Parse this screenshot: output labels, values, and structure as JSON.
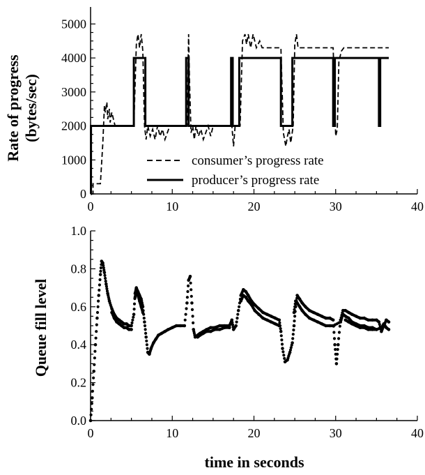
{
  "chart_data": [
    {
      "type": "line",
      "title": "",
      "xlabel": "",
      "ylabel": "Rate of progress",
      "ylabel2": "(bytes/sec)",
      "xlim": [
        0,
        40
      ],
      "ylim": [
        0,
        5500
      ],
      "xticks": [
        0,
        10,
        20,
        30,
        40
      ],
      "yticks": [
        0,
        1000,
        2000,
        3000,
        4000,
        5000
      ],
      "xtick_labels": [
        "0",
        "10",
        "20",
        "30",
        "40"
      ],
      "ytick_labels": [
        "0",
        "1000",
        "2000",
        "3000",
        "4000",
        "5000"
      ],
      "legend_position": "bottom-center",
      "series": [
        {
          "name": "producer’s progress rate",
          "style": "solid",
          "x": [
            0,
            0.05,
            0.05,
            5.3,
            5.3,
            6.7,
            6.7,
            11.7,
            11.7,
            12.0,
            12.0,
            17.2,
            17.2,
            17.4,
            17.4,
            18.2,
            18.2,
            23.3,
            23.3,
            24.7,
            24.7,
            29.7,
            29.7,
            29.9,
            29.9,
            35.3,
            35.3,
            35.45,
            35.45,
            36.5
          ],
          "y": [
            0,
            0,
            2000,
            2000,
            4000,
            4000,
            2000,
            2000,
            4000,
            4000,
            2000,
            2000,
            4000,
            4000,
            2000,
            2000,
            4000,
            4000,
            2000,
            2000,
            4000,
            4000,
            2000,
            2000,
            4000,
            4000,
            2000,
            2000,
            4000,
            4000
          ]
        },
        {
          "name": "consumer’s progress rate",
          "style": "dashed",
          "x": [
            0.1,
            0.3,
            0.3,
            1.2,
            1.5,
            1.7,
            1.8,
            2.0,
            2.1,
            2.3,
            2.4,
            2.6,
            2.8,
            3.0,
            3.2,
            5.3,
            5.6,
            5.8,
            6.0,
            6.2,
            6.4,
            6.6,
            6.8,
            7.0,
            7.3,
            7.6,
            7.9,
            8.2,
            8.5,
            8.8,
            9.1,
            9.4,
            9.7,
            10.0,
            11.8,
            12.0,
            12.1,
            12.3,
            12.5,
            12.7,
            12.9,
            13.2,
            13.5,
            13.8,
            14.1,
            14.4,
            14.7,
            15.0,
            15.4,
            17.3,
            17.5,
            17.7,
            18.3,
            18.6,
            18.9,
            19.1,
            19.3,
            19.6,
            19.9,
            20.3,
            20.7,
            21.0,
            22.8,
            23.3,
            23.6,
            23.9,
            24.1,
            24.3,
            24.5,
            24.8,
            25.0,
            25.2,
            25.4,
            25.6,
            26.0,
            29.7,
            30.0,
            30.2,
            30.4,
            30.7,
            31.0,
            31.3,
            32.0,
            36.5
          ],
          "y": [
            0,
            0,
            300,
            300,
            1500,
            2600,
            2400,
            2700,
            2200,
            2500,
            2100,
            2400,
            2200,
            2000,
            2000,
            2000,
            4400,
            4700,
            4300,
            4700,
            4200,
            2000,
            1600,
            2000,
            1700,
            1900,
            1600,
            2000,
            1700,
            1900,
            1600,
            1800,
            2000,
            2000,
            2000,
            4700,
            3400,
            1800,
            2000,
            1600,
            2000,
            1700,
            1900,
            1600,
            1800,
            2000,
            1700,
            2000,
            2000,
            2000,
            1400,
            2000,
            2000,
            4500,
            4700,
            4400,
            4700,
            4300,
            4700,
            4300,
            4500,
            4300,
            4300,
            4300,
            1800,
            1400,
            1700,
            1900,
            1500,
            2000,
            4400,
            4700,
            4300,
            4300,
            4300,
            4300,
            1700,
            1900,
            3900,
            4200,
            4300,
            4300,
            4300,
            4300
          ]
        }
      ]
    },
    {
      "type": "scatter",
      "title": "",
      "xlabel": "time in seconds",
      "ylabel": "Queue fill level",
      "xlim": [
        0,
        40
      ],
      "ylim": [
        0,
        1.0
      ],
      "xticks": [
        0,
        10,
        20,
        30,
        40
      ],
      "yticks": [
        0,
        0.2,
        0.4,
        0.6,
        0.8,
        1.0
      ],
      "xtick_labels": [
        "0",
        "10",
        "20",
        "30",
        "40"
      ],
      "ytick_labels": [
        "0.0",
        "0.2",
        "0.4",
        "0.6",
        "0.8",
        "1.0"
      ],
      "series": [
        {
          "name": "",
          "x": [
            0.0,
            0.2,
            0.4,
            0.6,
            0.8,
            1.0,
            1.2,
            1.35,
            1.5,
            1.7,
            1.9,
            2.1,
            2.3,
            2.6,
            2.9,
            3.2,
            3.5,
            3.8,
            4.1,
            4.4,
            4.7,
            5.0,
            5.3,
            5.45,
            5.6,
            5.8,
            6.0,
            6.2,
            6.4,
            6.6,
            6.8,
            7.0,
            7.2,
            7.4,
            7.7,
            8.0,
            8.3,
            8.7,
            9.1,
            9.5,
            10.0,
            10.5,
            11.0,
            11.5,
            11.8,
            12.0,
            12.2,
            12.4,
            12.6,
            12.8,
            13.1,
            13.4,
            13.8,
            14.2,
            14.7,
            15.2,
            15.8,
            16.4,
            17.0,
            17.3,
            17.5,
            17.8,
            18.1,
            18.4,
            18.7,
            19.0,
            19.3,
            19.7,
            20.1,
            20.6,
            21.1,
            21.6,
            22.1,
            22.6,
            23.1,
            23.3,
            23.5,
            23.8,
            24.1,
            24.4,
            24.7,
            24.9,
            25.1,
            25.3,
            25.6,
            25.9,
            26.3,
            26.8,
            27.3,
            27.8,
            28.3,
            28.8,
            29.3,
            29.7,
            29.9,
            30.1,
            30.3,
            30.6,
            30.9,
            31.2,
            31.6,
            32.0,
            32.5,
            33.0,
            33.5,
            34.0,
            34.5,
            35.0,
            35.3,
            35.6,
            35.9,
            36.2,
            36.5
          ],
          "y": [
            0.0,
            0.12,
            0.26,
            0.4,
            0.54,
            0.66,
            0.77,
            0.84,
            0.83,
            0.78,
            0.72,
            0.67,
            0.63,
            0.59,
            0.56,
            0.54,
            0.53,
            0.52,
            0.51,
            0.51,
            0.5,
            0.5,
            0.56,
            0.67,
            0.7,
            0.68,
            0.66,
            0.64,
            0.6,
            0.52,
            0.44,
            0.36,
            0.35,
            0.38,
            0.41,
            0.43,
            0.45,
            0.46,
            0.47,
            0.48,
            0.49,
            0.5,
            0.5,
            0.5,
            0.62,
            0.74,
            0.76,
            0.62,
            0.48,
            0.44,
            0.45,
            0.46,
            0.47,
            0.48,
            0.49,
            0.49,
            0.5,
            0.5,
            0.5,
            0.53,
            0.48,
            0.5,
            0.58,
            0.66,
            0.69,
            0.68,
            0.66,
            0.63,
            0.61,
            0.59,
            0.57,
            0.56,
            0.55,
            0.54,
            0.53,
            0.47,
            0.38,
            0.31,
            0.32,
            0.36,
            0.41,
            0.5,
            0.6,
            0.66,
            0.64,
            0.62,
            0.6,
            0.58,
            0.57,
            0.56,
            0.55,
            0.54,
            0.54,
            0.53,
            0.4,
            0.3,
            0.4,
            0.53,
            0.58,
            0.58,
            0.57,
            0.56,
            0.55,
            0.54,
            0.54,
            0.53,
            0.53,
            0.53,
            0.52,
            0.47,
            0.5,
            0.53,
            0.52
          ]
        },
        {
          "name": "",
          "x": [
            5.45,
            5.6,
            5.8,
            6.0,
            6.2,
            6.4,
            18.4,
            18.7,
            19.0,
            19.3,
            19.7,
            20.1,
            20.6,
            21.1,
            21.6,
            22.1,
            22.6,
            23.1,
            24.9,
            25.1,
            25.3,
            25.6,
            25.9,
            26.3,
            26.8,
            27.3,
            27.8,
            28.3,
            28.8,
            29.3,
            29.7,
            30.6,
            30.9,
            31.2,
            31.6,
            32.0,
            32.5,
            33.0,
            33.5,
            34.0,
            34.5,
            35.0,
            35.6,
            35.9,
            36.2,
            36.5
          ],
          "y": [
            0.65,
            0.68,
            0.66,
            0.63,
            0.6,
            0.57,
            0.63,
            0.66,
            0.65,
            0.63,
            0.61,
            0.58,
            0.56,
            0.54,
            0.53,
            0.52,
            0.51,
            0.5,
            0.57,
            0.63,
            0.62,
            0.6,
            0.58,
            0.56,
            0.54,
            0.53,
            0.52,
            0.51,
            0.5,
            0.5,
            0.5,
            0.52,
            0.56,
            0.55,
            0.54,
            0.52,
            0.51,
            0.5,
            0.5,
            0.49,
            0.49,
            0.48,
            0.49,
            0.51,
            0.49,
            0.48
          ]
        },
        {
          "name": "",
          "x": [
            2.6,
            2.9,
            3.2,
            3.5,
            3.8,
            4.1,
            4.4,
            4.7,
            5.0,
            13.1,
            13.4,
            13.8,
            14.2,
            14.7,
            15.2,
            15.8,
            16.4,
            17.0,
            31.2,
            31.6,
            32.0,
            32.5,
            33.0,
            33.5,
            34.0,
            34.5,
            35.0
          ],
          "y": [
            0.57,
            0.54,
            0.52,
            0.51,
            0.5,
            0.49,
            0.49,
            0.48,
            0.48,
            0.44,
            0.45,
            0.46,
            0.47,
            0.47,
            0.48,
            0.48,
            0.49,
            0.49,
            0.53,
            0.52,
            0.51,
            0.5,
            0.49,
            0.49,
            0.48,
            0.48,
            0.48
          ]
        }
      ]
    }
  ]
}
